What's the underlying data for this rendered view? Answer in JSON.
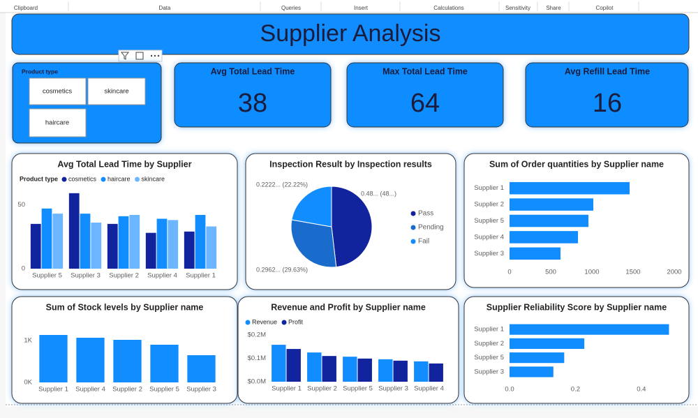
{
  "ribbon": {
    "groups": [
      "Clipboard",
      "Data",
      "Queries",
      "Insert",
      "Calculations",
      "Sensitivity",
      "Share",
      "Copilot"
    ]
  },
  "title": "Supplier Analysis",
  "slicer": {
    "title": "Product type",
    "options": [
      "cosmetics",
      "skincare",
      "haircare"
    ]
  },
  "cards": [
    {
      "title": "Avg Total Lead Time",
      "value": 38
    },
    {
      "title": "Max Total Lead Time",
      "value": 64
    },
    {
      "title": "Avg Refill Lead Time",
      "value": 16
    }
  ],
  "chart_data": [
    {
      "type": "bar",
      "title": "Avg Total Lead Time by Supplier",
      "legend_title": "Product type",
      "categories": [
        "Supplier 5",
        "Supplier 3",
        "Supplier 2",
        "Supplier 4",
        "Supplier 1"
      ],
      "series": [
        {
          "name": "cosmetics",
          "color": "#12239e",
          "values": [
            35,
            59,
            35,
            28,
            29
          ]
        },
        {
          "name": "haircare",
          "color": "#118dff",
          "values": [
            47,
            43,
            41,
            39,
            42
          ]
        },
        {
          "name": "skincare",
          "color": "#6cb6ff",
          "values": [
            43,
            36,
            42,
            38,
            33
          ]
        }
      ],
      "ylim": [
        0,
        60
      ],
      "yticks": [
        0,
        50
      ]
    },
    {
      "type": "pie",
      "title": "Inspection Result by Inspection results",
      "categories": [
        "Pass",
        "Pending",
        "Fail"
      ],
      "values": [
        48.15,
        29.63,
        22.22
      ],
      "value_labels": [
        "0.48... (48...)",
        "0.2962... (29.63%)",
        "0.2222... (22.22%)"
      ],
      "colors": [
        "#12239e",
        "#1a6ccc",
        "#118dff"
      ]
    },
    {
      "type": "hbar",
      "title": "Sum of Order quantities by Supplier name",
      "categories": [
        "Supplier 1",
        "Supplier 2",
        "Supplier 5",
        "Supplier 4",
        "Supplier 3"
      ],
      "values": [
        1458,
        1017,
        958,
        831,
        619
      ],
      "color": "#118dff",
      "xlim": [
        0,
        2000
      ],
      "xticks": [
        0,
        500,
        1000,
        1500,
        2000
      ]
    },
    {
      "type": "bar",
      "title": "Sum of Stock levels by Supplier name",
      "categories": [
        "Supplier 1",
        "Supplier 4",
        "Supplier 2",
        "Supplier 5",
        "Supplier 3"
      ],
      "values": [
        1133,
        1067,
        1017,
        900,
        650
      ],
      "color": "#118dff",
      "ylim": [
        0,
        1200
      ],
      "yticks": [
        {
          "value": 0,
          "label": "0K"
        },
        {
          "value": 1000,
          "label": "1K"
        }
      ]
    },
    {
      "type": "bar",
      "title": "Revenue and Profit by Supplier name",
      "categories": [
        "Supplier 1",
        "Supplier 2",
        "Supplier 5",
        "Supplier 3",
        "Supplier 4"
      ],
      "series": [
        {
          "name": "Revenue",
          "color": "#118dff",
          "values": [
            158000,
            125000,
            107000,
            96000,
            87000
          ]
        },
        {
          "name": "Profit",
          "color": "#12239e",
          "values": [
            140000,
            110000,
            99000,
            90000,
            78000
          ]
        }
      ],
      "ylim": [
        0,
        200000
      ],
      "yticks": [
        {
          "value": 0,
          "label": "$0.0M"
        },
        {
          "value": 100000,
          "label": "$0.1M"
        },
        {
          "value": 200000,
          "label": "$0.2M"
        }
      ]
    },
    {
      "type": "hbar",
      "title": "Supplier Reliability Score by Supplier name",
      "categories": [
        "Supplier 1",
        "Supplier 2",
        "Supplier 5",
        "Supplier 3"
      ],
      "values": [
        0.484,
        0.227,
        0.166,
        0.133
      ],
      "color": "#118dff",
      "xlim": [
        0,
        0.5
      ],
      "xticks": [
        {
          "value": 0,
          "label": "0.0"
        },
        0.2,
        0.4
      ]
    }
  ]
}
